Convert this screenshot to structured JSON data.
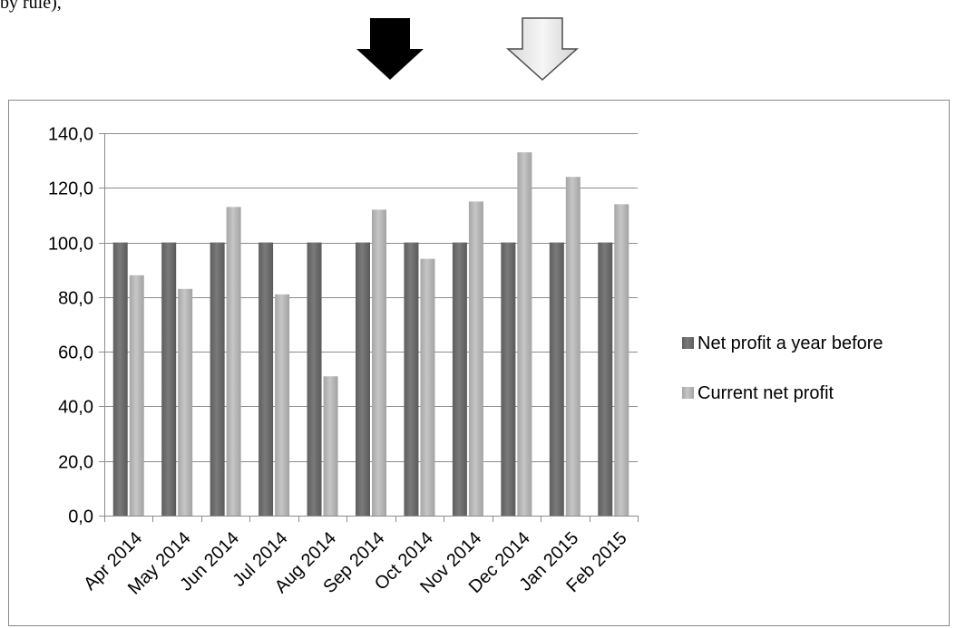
{
  "caption_fragment": "by rule),",
  "annotations": [
    {
      "name": "filled-down-arrow-icon",
      "style": "filled",
      "color": "#000000"
    },
    {
      "name": "outline-down-arrow-icon",
      "style": "outline",
      "color": "#e0e0e0"
    }
  ],
  "chart_data": {
    "type": "bar",
    "title": "",
    "xlabel": "",
    "ylabel": "",
    "categories": [
      "Apr 2014",
      "May 2014",
      "Jun 2014",
      "Jul 2014",
      "Aug 2014",
      "Sep 2014",
      "Oct 2014",
      "Nov 2014",
      "Dec 2014",
      "Jan 2015",
      "Feb 2015"
    ],
    "series": [
      {
        "name": "Net profit a year before",
        "color": "#707070",
        "values": [
          100,
          100,
          100,
          100,
          100,
          100,
          100,
          100,
          100,
          100,
          100
        ]
      },
      {
        "name": "Current net profit",
        "color": "#b4b4b4",
        "values": [
          88,
          83,
          113,
          81,
          51,
          112,
          94,
          115,
          133,
          124,
          114
        ]
      }
    ],
    "ylim": [
      0,
      140
    ],
    "yticks": [
      "0,0",
      "20,0",
      "40,0",
      "60,0",
      "80,0",
      "100,0",
      "120,0",
      "140,0"
    ],
    "grid": true,
    "legend_position": "right"
  }
}
